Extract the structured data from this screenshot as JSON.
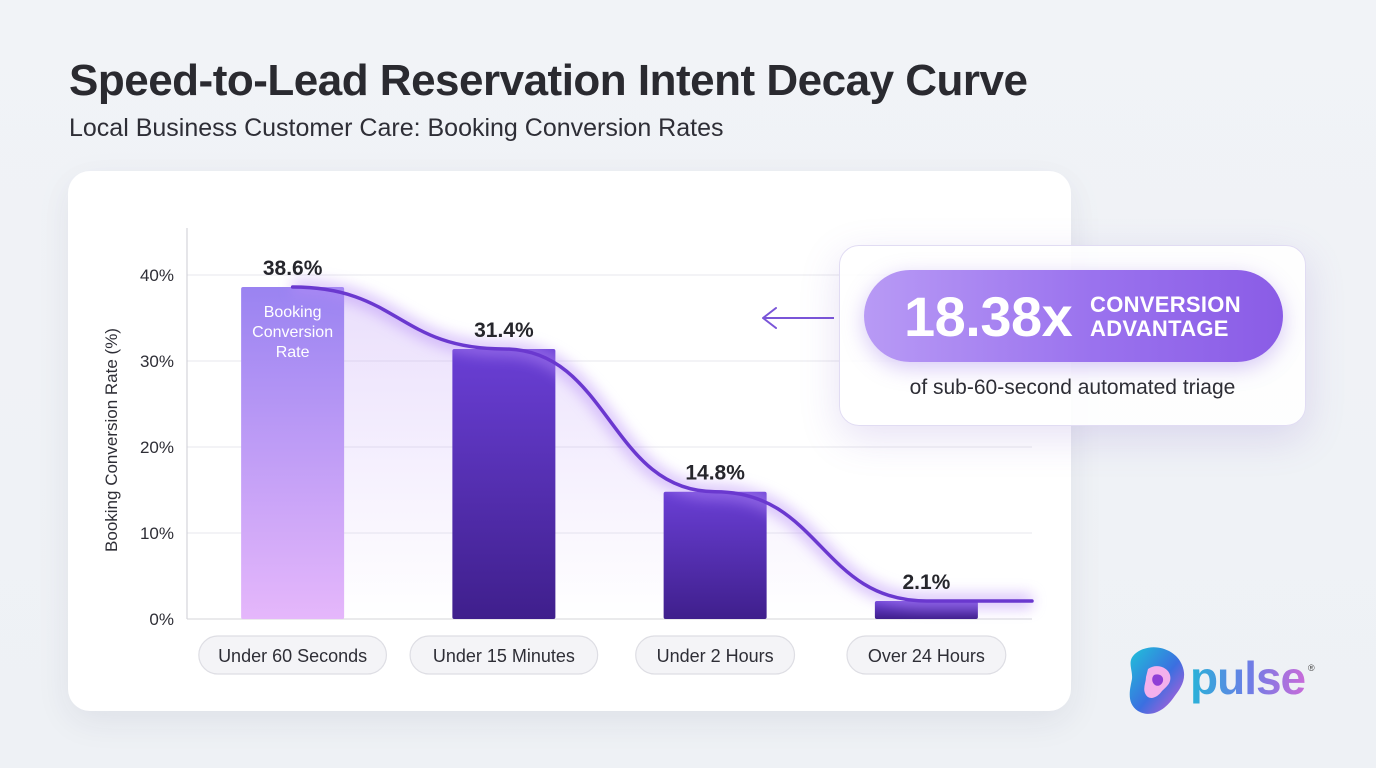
{
  "header": {
    "title": "Speed-to-Lead Reservation Intent Decay Curve",
    "subtitle": "Local Business Customer Care: Booking Conversion Rates"
  },
  "chart_data": {
    "type": "bar",
    "categories": [
      "Under 60 Seconds",
      "Under 15 Minutes",
      "Under 2 Hours",
      "Over 24 Hours"
    ],
    "values": [
      38.6,
      31.4,
      14.8,
      2.1
    ],
    "data_labels": [
      "38.6%",
      "31.4%",
      "14.8%",
      "2.1%"
    ],
    "ylabel": "Booking Conversion Rate (%)",
    "ylim": [
      0,
      40
    ],
    "yticks": [
      0,
      10,
      20,
      30,
      40
    ],
    "ytick_labels": [
      "0%",
      "10%",
      "20%",
      "30%",
      "40%"
    ],
    "bar_inner_label": [
      "Booking",
      "Conversion",
      "Rate"
    ],
    "grid": true,
    "overlay": "smooth decay curve through bar tops",
    "colors": {
      "first_bar_top": "#9a83f1",
      "first_bar_bottom": "#e5b7fb",
      "bar_top": "#6a3fd5",
      "bar_bottom": "#3f1f8c",
      "curve": "#6a38cf"
    }
  },
  "callout": {
    "value": "18.38x",
    "label_line1": "CONVERSION",
    "label_line2": "ADVANTAGE",
    "caption": "of sub-60-second automated triage",
    "arrow_icon": "arrow-left-icon"
  },
  "brand": {
    "name": "pulse",
    "registered": "®",
    "logo_icon": "pulse-blob-icon",
    "colors": [
      "#27b3d8",
      "#6a7ee6",
      "#c86bd9"
    ]
  }
}
